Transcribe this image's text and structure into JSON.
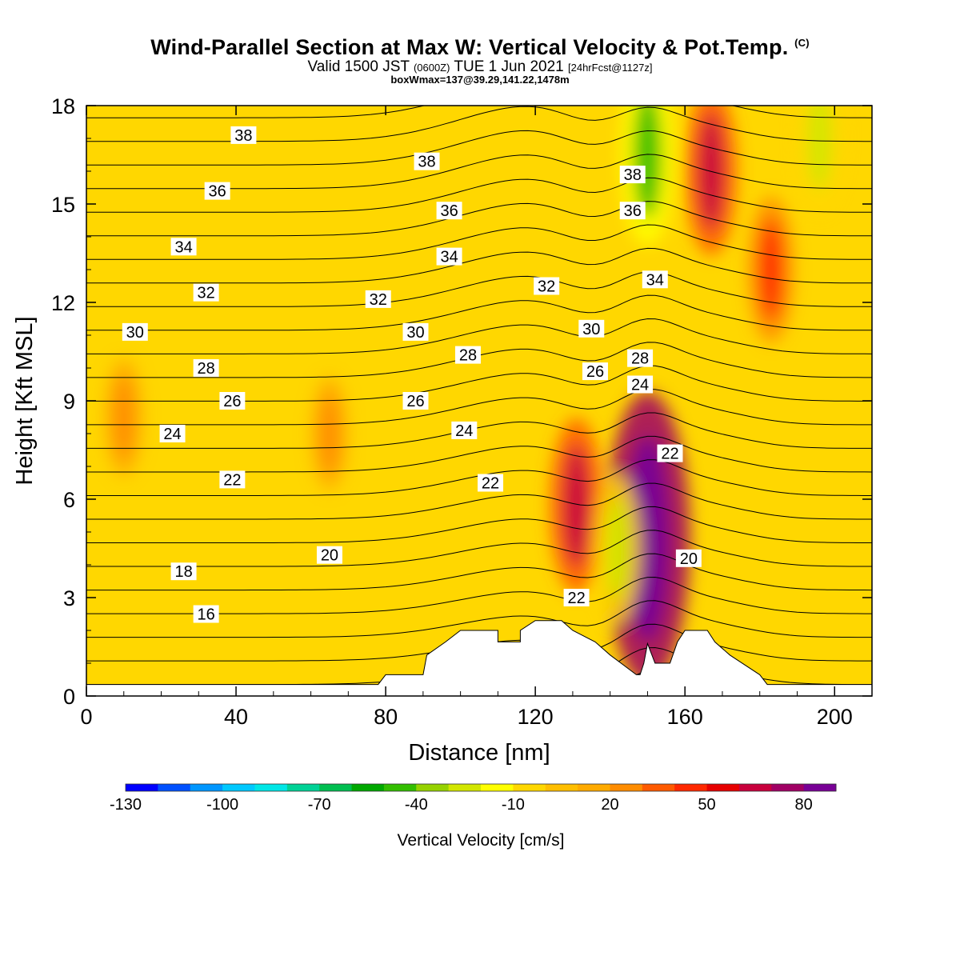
{
  "title": {
    "main": "Wind-Parallel Section at Max W: Vertical Velocity & Pot.Temp.",
    "copyright": "(C)",
    "valid_prefix": "Valid 1500 JST",
    "valid_utc": "(0600Z)",
    "valid_date": "TUE 1 Jun 2021",
    "forecast": "[24hrFcst@1127z]",
    "box_info": "boxWmax=137@39.29,141.22,1478m"
  },
  "colorbar": {
    "label": "Vertical Velocity [cm/s]",
    "tick_labels": [
      "-130",
      "-100",
      "-70",
      "-40",
      "-10",
      "20",
      "50",
      "80"
    ],
    "colors": [
      "#0000ff",
      "#0050ff",
      "#0096ff",
      "#00c8ff",
      "#00e6e6",
      "#00d296",
      "#00be50",
      "#00a800",
      "#32be00",
      "#96d200",
      "#d2e600",
      "#ffff00",
      "#ffd700",
      "#ffbe00",
      "#ffaa00",
      "#ff8c00",
      "#ff5a00",
      "#ff2800",
      "#e60000",
      "#c8003c",
      "#a00064",
      "#780096"
    ]
  },
  "chart_data": {
    "type": "heatmap",
    "xlabel": "Distance [nm]",
    "ylabel": "Height [Kft MSL]",
    "xlim": [
      0,
      210
    ],
    "ylim": [
      0,
      18
    ],
    "xticks": [
      0,
      40,
      80,
      120,
      160,
      200
    ],
    "yticks": [
      0,
      3,
      6,
      9,
      12,
      15,
      18
    ],
    "field": "Vertical Velocity [cm/s]",
    "background_value_cm_s": 0,
    "velocity_features": [
      {
        "x": 131,
        "y": 5.8,
        "w": 55,
        "label": "updraft"
      },
      {
        "x": 150,
        "y": 4.8,
        "w": 137,
        "label": "updraft (max)"
      },
      {
        "x": 142,
        "y": 4.5,
        "w": -35,
        "label": "downdraft"
      },
      {
        "x": 150,
        "y": 16.5,
        "w": -60,
        "label": "downdraft aloft"
      },
      {
        "x": 167,
        "y": 16.0,
        "w": 50,
        "label": "updraft aloft"
      },
      {
        "x": 183,
        "y": 13.0,
        "w": 35,
        "label": "updraft aloft"
      },
      {
        "x": 196,
        "y": 17.0,
        "w": -35,
        "label": "downdraft aloft"
      },
      {
        "x": 10,
        "y": 8.5,
        "w": 15,
        "label": "weak updraft"
      },
      {
        "x": 65,
        "y": 8.0,
        "w": 12,
        "label": "weak updraft"
      }
    ],
    "terrain": [
      [
        0,
        0.35
      ],
      [
        78,
        0.35
      ],
      [
        80,
        0.65
      ],
      [
        90,
        0.65
      ],
      [
        91,
        1.25
      ],
      [
        96,
        1.65
      ],
      [
        100,
        2.0
      ],
      [
        110,
        2.0
      ],
      [
        110,
        1.65
      ],
      [
        116,
        1.65
      ],
      [
        116,
        2.0
      ],
      [
        120,
        2.3
      ],
      [
        127,
        2.3
      ],
      [
        130,
        2.0
      ],
      [
        136,
        1.65
      ],
      [
        140,
        1.25
      ],
      [
        147,
        0.65
      ],
      [
        148,
        0.65
      ],
      [
        149,
        1.0
      ],
      [
        150,
        1.6
      ],
      [
        152,
        1.0
      ],
      [
        156,
        1.0
      ],
      [
        158,
        1.65
      ],
      [
        160,
        2.0
      ],
      [
        166,
        2.0
      ],
      [
        168,
        1.65
      ],
      [
        172,
        1.25
      ],
      [
        180,
        0.65
      ],
      [
        182,
        0.35
      ],
      [
        210,
        0.35
      ]
    ],
    "isentropes": {
      "variable": "Potential Temperature",
      "levels": [
        16,
        18,
        20,
        22,
        24,
        26,
        28,
        30,
        32,
        34,
        36,
        38
      ],
      "labels": [
        {
          "text": "38",
          "x": 42,
          "y": 17.1
        },
        {
          "text": "38",
          "x": 91,
          "y": 16.3
        },
        {
          "text": "38",
          "x": 146,
          "y": 15.9
        },
        {
          "text": "36",
          "x": 35,
          "y": 15.4
        },
        {
          "text": "36",
          "x": 97,
          "y": 14.8
        },
        {
          "text": "36",
          "x": 146,
          "y": 14.8
        },
        {
          "text": "34",
          "x": 26,
          "y": 13.7
        },
        {
          "text": "34",
          "x": 97,
          "y": 13.4
        },
        {
          "text": "34",
          "x": 152,
          "y": 12.7
        },
        {
          "text": "32",
          "x": 32,
          "y": 12.3
        },
        {
          "text": "32",
          "x": 78,
          "y": 12.1
        },
        {
          "text": "32",
          "x": 123,
          "y": 12.5
        },
        {
          "text": "30",
          "x": 13,
          "y": 11.1
        },
        {
          "text": "30",
          "x": 88,
          "y": 11.1
        },
        {
          "text": "30",
          "x": 135,
          "y": 11.2
        },
        {
          "text": "28",
          "x": 32,
          "y": 10.0
        },
        {
          "text": "28",
          "x": 102,
          "y": 10.4
        },
        {
          "text": "28",
          "x": 148,
          "y": 10.3
        },
        {
          "text": "26",
          "x": 39,
          "y": 9.0
        },
        {
          "text": "26",
          "x": 88,
          "y": 9.0
        },
        {
          "text": "26",
          "x": 136,
          "y": 9.9
        },
        {
          "text": "24",
          "x": 23,
          "y": 8.0
        },
        {
          "text": "24",
          "x": 101,
          "y": 8.1
        },
        {
          "text": "24",
          "x": 148,
          "y": 9.5
        },
        {
          "text": "22",
          "x": 39,
          "y": 6.6
        },
        {
          "text": "22",
          "x": 108,
          "y": 6.5
        },
        {
          "text": "22",
          "x": 156,
          "y": 7.4
        },
        {
          "text": "22",
          "x": 131,
          "y": 3.0
        },
        {
          "text": "20",
          "x": 65,
          "y": 4.3
        },
        {
          "text": "20",
          "x": 161,
          "y": 4.2
        },
        {
          "text": "18",
          "x": 26,
          "y": 3.8
        },
        {
          "text": "16",
          "x": 32,
          "y": 2.5
        }
      ]
    }
  }
}
